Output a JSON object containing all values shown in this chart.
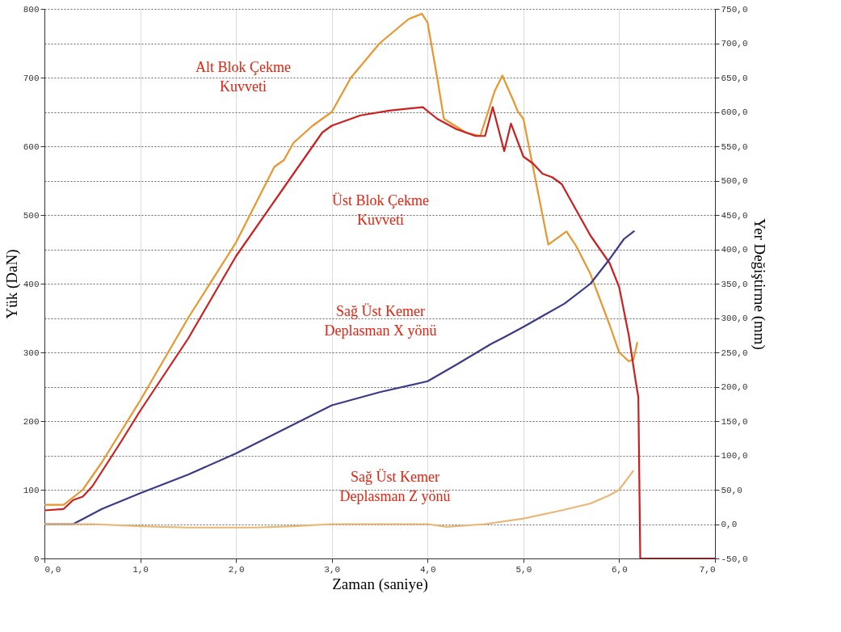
{
  "chart_data": {
    "type": "line",
    "xlabel": "Zaman (saniye)",
    "ylabel": "Yük (DaN)",
    "y2label": "Yer Değiştirme (mm)",
    "xlim": [
      0,
      7
    ],
    "xticks": [
      {
        "value": 0,
        "label": "0,0"
      },
      {
        "value": 1,
        "label": "1,0"
      },
      {
        "value": 2,
        "label": "2,0"
      },
      {
        "value": 3,
        "label": "3,0"
      },
      {
        "value": 4,
        "label": "4,0"
      },
      {
        "value": 5,
        "label": "5,0"
      },
      {
        "value": 6,
        "label": "6,0"
      },
      {
        "value": 7,
        "label": "7,0"
      }
    ],
    "ylim": [
      0,
      800
    ],
    "yticks": [
      0,
      100,
      200,
      300,
      400,
      500,
      600,
      700,
      800
    ],
    "y2lim": [
      -50,
      750
    ],
    "y2ticks": [
      {
        "value": -50,
        "label": "-50,0"
      },
      {
        "value": 0,
        "label": "0,0"
      },
      {
        "value": 50,
        "label": "50,0"
      },
      {
        "value": 100,
        "label": "100,0"
      },
      {
        "value": 150,
        "label": "150,0"
      },
      {
        "value": 200,
        "label": "200,0"
      },
      {
        "value": 250,
        "label": "250,0"
      },
      {
        "value": 300,
        "label": "300,0"
      },
      {
        "value": 350,
        "label": "350,0"
      },
      {
        "value": 400,
        "label": "400,0"
      },
      {
        "value": 450,
        "label": "450,0"
      },
      {
        "value": 500,
        "label": "500,0"
      },
      {
        "value": 550,
        "label": "550,0"
      },
      {
        "value": 600,
        "label": "600,0"
      },
      {
        "value": 650,
        "label": "650,0"
      },
      {
        "value": 700,
        "label": "700,0"
      },
      {
        "value": 750,
        "label": "750,0"
      }
    ],
    "grid": true,
    "series": [
      {
        "name": "Alt Blok Çekme Kuvveti",
        "color": "#e8962e",
        "x": [
          0,
          0.2,
          0.4,
          0.6,
          1.0,
          1.5,
          2.0,
          2.4,
          2.5,
          2.6,
          2.8,
          3.0,
          3.2,
          3.5,
          3.8,
          3.94,
          4.0,
          4.1,
          4.17,
          4.4,
          4.55,
          4.7,
          4.78,
          4.9,
          4.94,
          5.0,
          5.1,
          5.26,
          5.45,
          5.55,
          5.7,
          5.9,
          6.0,
          6.1,
          6.15,
          6.19
        ],
        "values": [
          78,
          78,
          100,
          140,
          230,
          350,
          460,
          570,
          580,
          605,
          630,
          650,
          700,
          750,
          785,
          793,
          780,
          700,
          640,
          620,
          615,
          680,
          703,
          665,
          651,
          640,
          570,
          457,
          476,
          455,
          414,
          340,
          300,
          287,
          290,
          315
        ]
      },
      {
        "name": "Üst Blok Çekme Kuvveti",
        "color": "#cc1f1f",
        "x": [
          0,
          0.2,
          0.3,
          0.4,
          0.5,
          0.8,
          1.0,
          1.5,
          2.0,
          2.5,
          2.9,
          3.0,
          3.3,
          3.6,
          3.95,
          4.1,
          4.3,
          4.5,
          4.6,
          4.68,
          4.8,
          4.87,
          5.0,
          5.1,
          5.2,
          5.3,
          5.4,
          5.5,
          5.7,
          5.9,
          6.0,
          6.1,
          6.17,
          6.2,
          6.22,
          7.0
        ],
        "values": [
          70,
          72,
          85,
          90,
          105,
          170,
          215,
          320,
          440,
          540,
          620,
          630,
          645,
          652,
          657,
          640,
          625,
          615,
          615,
          657,
          593,
          633,
          585,
          575,
          560,
          555,
          545,
          520,
          470,
          430,
          395,
          325,
          260,
          235,
          0,
          0
        ]
      },
      {
        "name": "Sağ Üst Kemer Deplasman X yönü",
        "color": "#3a3a8a",
        "axis": "y2",
        "x": [
          0,
          0.3,
          0.6,
          1.0,
          1.5,
          2.0,
          2.5,
          3.0,
          3.5,
          4.0,
          4.3,
          4.66,
          4.8,
          5.0,
          5.2,
          5.43,
          5.7,
          5.88,
          6.05,
          6.16
        ],
        "values": [
          0,
          0,
          22,
          45,
          72,
          103,
          138,
          173,
          192,
          208,
          232,
          262,
          272,
          287,
          303,
          321,
          350,
          382,
          415,
          427
        ]
      },
      {
        "name": "Sağ Üst Kemer Deplasman Z yönü",
        "color": "#eab676",
        "axis": "y2",
        "x": [
          0,
          0.5,
          1.0,
          1.5,
          2.0,
          2.2,
          2.6,
          3.0,
          3.5,
          4.0,
          4.2,
          4.6,
          5.0,
          5.4,
          5.7,
          5.9,
          6.0,
          6.15
        ],
        "values": [
          0,
          0,
          -3,
          -5,
          -5,
          -5,
          -3,
          0,
          0,
          0,
          -4,
          0,
          8,
          20,
          30,
          42,
          50,
          78
        ]
      }
    ]
  }
}
